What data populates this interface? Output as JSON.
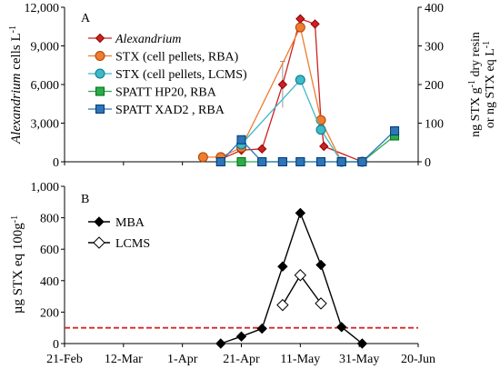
{
  "chart_data": [
    {
      "panel_label": "A",
      "type": "line",
      "x_axis": {
        "type": "date",
        "range": [
          "2016-02-21",
          "2016-06-20"
        ],
        "ticks": [
          "2016-02-21",
          "2016-03-12",
          "2016-04-01",
          "2016-04-21",
          "2016-05-11",
          "2016-05-31",
          "2016-06-20"
        ],
        "tick_labels": []
      },
      "ylabel_left": [
        "Alexandrium",
        " cells L",
        "-1"
      ],
      "ylabel_right_line1": [
        "ng STX g",
        "-1",
        " dry resin"
      ],
      "ylabel_right_line2": [
        "or ng STX eq L",
        "-1"
      ],
      "ylim_left": [
        0,
        12000
      ],
      "yticks_left": [
        "0",
        "3,000",
        "6,000",
        "9,000",
        "12,000"
      ],
      "ylim_right": [
        0,
        400
      ],
      "yticks_right": [
        "0",
        "100",
        "200",
        "300",
        "400"
      ],
      "series": [
        {
          "name": "Alexandrium",
          "italic": true,
          "axis": "left",
          "color": "#CC2222",
          "marker": "diamond",
          "x": [
            "2016-04-14",
            "2016-04-21",
            "2016-04-28",
            "2016-05-05",
            "2016-05-11",
            "2016-05-16",
            "2016-05-18",
            "2016-05-19",
            "2016-06-01"
          ],
          "y": [
            200,
            900,
            1000,
            6000,
            11100,
            10700,
            3200,
            1200,
            0
          ],
          "error": [
            0,
            0,
            0,
            1800,
            0,
            0,
            0,
            0,
            0
          ]
        },
        {
          "name": "STX (cell pellets, RBA)",
          "axis": "right",
          "color": "#ED7D31",
          "marker": "circle",
          "x": [
            "2016-04-08",
            "2016-04-14",
            "2016-04-21",
            "2016-05-11",
            "2016-05-18",
            "2016-05-25",
            "2016-06-01"
          ],
          "y": [
            12,
            12,
            37,
            348,
            108,
            0,
            0
          ]
        },
        {
          "name": "STX (cell pellets, LCMS)",
          "axis": "right",
          "color": "#3FB8C8",
          "marker": "circle",
          "x": [
            "2016-04-21",
            "2016-05-11",
            "2016-05-18",
            "2016-05-25",
            "2016-06-01"
          ],
          "y": [
            45,
            212,
            83,
            0,
            0
          ]
        },
        {
          "name": "SPATT HP20, RBA",
          "axis": "right",
          "color": "#2DAA4C",
          "marker": "square",
          "x": [
            "2016-04-14",
            "2016-04-21",
            "2016-04-28",
            "2016-05-05",
            "2016-05-11",
            "2016-05-18",
            "2016-05-25",
            "2016-06-01",
            "2016-06-12"
          ],
          "y": [
            0,
            0,
            0,
            0,
            0,
            0,
            0,
            0,
            67
          ]
        },
        {
          "name": "SPATT XAD2 , RBA",
          "axis": "right",
          "color": "#2E75B6",
          "marker": "square",
          "x": [
            "2016-04-14",
            "2016-04-21",
            "2016-04-28",
            "2016-05-05",
            "2016-05-11",
            "2016-05-18",
            "2016-05-25",
            "2016-06-01",
            "2016-06-12"
          ],
          "y": [
            0,
            57,
            0,
            0,
            0,
            0,
            0,
            0,
            80
          ]
        }
      ],
      "legend_position": "top-left"
    },
    {
      "panel_label": "B",
      "type": "line",
      "x_axis": {
        "type": "date",
        "range": [
          "2016-02-21",
          "2016-06-20"
        ],
        "ticks": [
          "2016-02-21",
          "2016-03-12",
          "2016-04-01",
          "2016-04-21",
          "2016-05-11",
          "2016-05-31",
          "2016-06-20"
        ],
        "tick_labels": [
          "21-Feb",
          "12-Mar",
          "1-Apr",
          "21-Apr",
          "11-May",
          "31-May",
          "20-Jun"
        ]
      },
      "ylabel": [
        "µg STX eq 100g",
        "-1"
      ],
      "ylim": [
        0,
        1000
      ],
      "yticks": [
        "0",
        "200",
        "400",
        "600",
        "800",
        "1,000"
      ],
      "series": [
        {
          "name": "MBA",
          "color": "#000000",
          "marker": "diamond-filled",
          "x": [
            "2016-04-14",
            "2016-04-21",
            "2016-04-28",
            "2016-05-05",
            "2016-05-11",
            "2016-05-18",
            "2016-05-25",
            "2016-06-01"
          ],
          "y": [
            0,
            45,
            95,
            490,
            830,
            500,
            105,
            0
          ]
        },
        {
          "name": "LCMS",
          "color": "#000000",
          "marker": "diamond-open",
          "x": [
            "2016-05-05",
            "2016-05-11",
            "2016-05-18"
          ],
          "y": [
            245,
            435,
            255
          ]
        }
      ],
      "reference_line": {
        "y": 100,
        "color": "#D62728",
        "style": "dashed"
      },
      "legend_position": "top-left"
    }
  ]
}
